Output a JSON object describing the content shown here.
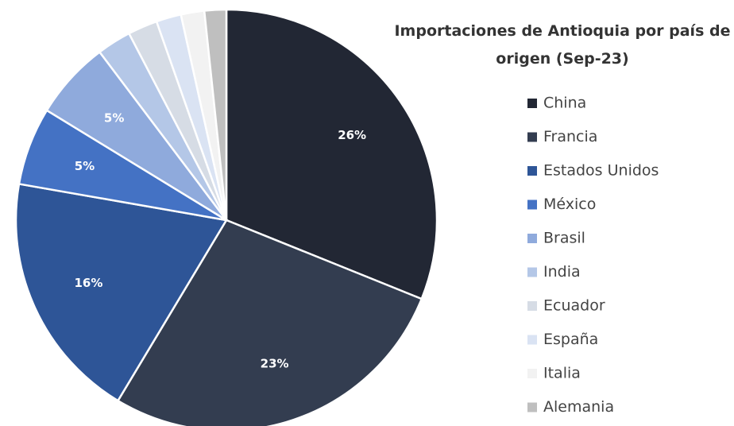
{
  "chart_data": {
    "type": "pie",
    "title": "Importaciones de Antioquia por país de origen (Sep-23)",
    "categories": [
      "China",
      "Francia",
      "Estados Unidos",
      "México",
      "Brasil",
      "India",
      "Ecuador",
      "España",
      "Italia",
      "Alemania"
    ],
    "values": [
      26,
      23,
      16,
      5,
      5,
      2.2,
      1.9,
      1.6,
      1.5,
      1.4
    ],
    "value_labels": [
      "26%",
      "23%",
      "16%",
      "5%",
      "5%",
      null,
      null,
      null,
      null,
      null
    ],
    "colors": [
      "#222734",
      "#333d50",
      "#2e5597",
      "#4472c4",
      "#8faadc",
      "#b4c7e7",
      "#d6dce5",
      "#dae3f3",
      "#f2f2f2",
      "#bfbfbf"
    ],
    "legend": "right"
  }
}
